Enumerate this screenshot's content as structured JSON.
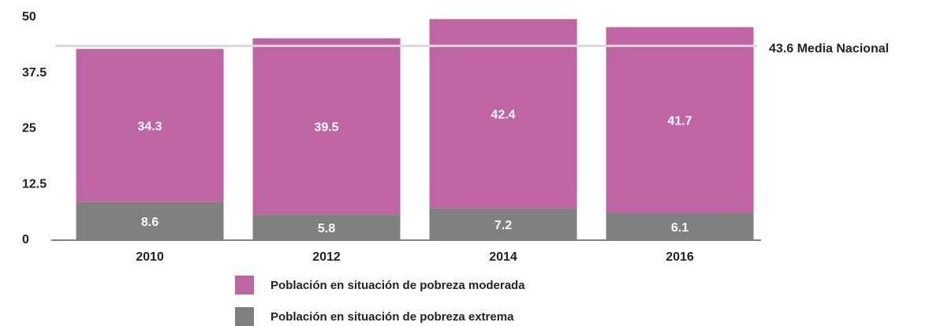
{
  "chart_data": {
    "type": "stacked_bar",
    "categories": [
      "2010",
      "2012",
      "2014",
      "2016"
    ],
    "series": [
      {
        "name": "Población en situación de pobreza extrema",
        "color": "#7f807f",
        "values": [
          8.6,
          5.8,
          7.2,
          6.1
        ]
      },
      {
        "name": "Población en situación de pobreza moderada",
        "color": "#c065a4",
        "values": [
          34.3,
          39.5,
          42.4,
          41.7
        ]
      }
    ],
    "ylim": [
      0,
      50
    ],
    "yticks": [
      0,
      12.5,
      25,
      37.5,
      50
    ],
    "grid": false,
    "reference_line": {
      "value": 43.6,
      "label": "43.6 Media Nacional",
      "color": "#d9d9d9"
    }
  }
}
